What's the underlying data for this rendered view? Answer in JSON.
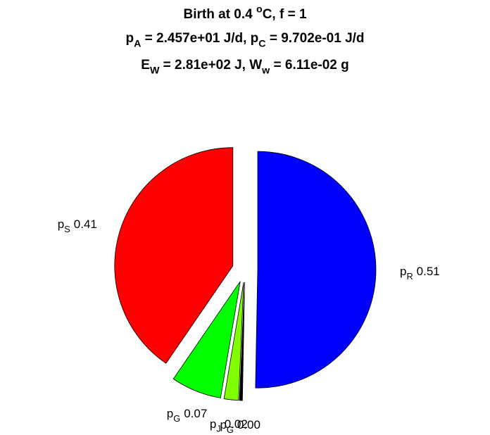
{
  "chart_data": {
    "type": "pie",
    "title": [
      [
        "Birth at 0.4 ",
        {
          "sup": "o"
        },
        "C, f = 1"
      ],
      [
        "p",
        {
          "sub": "A"
        },
        " = 2.457e+01 J/d, p",
        {
          "sub": "C"
        },
        " = 9.702e-01 J/d"
      ],
      [
        "E",
        {
          "sub": "W"
        },
        " = 2.81e+02 J, W",
        {
          "sub": "w"
        },
        " = 6.11e-02 g"
      ]
    ],
    "categories": [
      [
        "p",
        {
          "sub": "R"
        }
      ],
      [
        "p",
        {
          "sub": "G"
        }
      ],
      [
        "p",
        {
          "sub": "J"
        }
      ],
      [
        "p",
        {
          "sub": "G"
        }
      ],
      [
        "p",
        {
          "sub": "S"
        }
      ]
    ],
    "values": [
      0.51,
      0.004,
      0.02,
      0.07,
      0.41
    ],
    "value_labels": [
      "0.51",
      "0.00",
      "0.02",
      "0.07",
      "0.41"
    ],
    "colors": [
      "#0000ff",
      "#000000",
      "#80ff00",
      "#00ff00",
      "#ff0000"
    ]
  }
}
